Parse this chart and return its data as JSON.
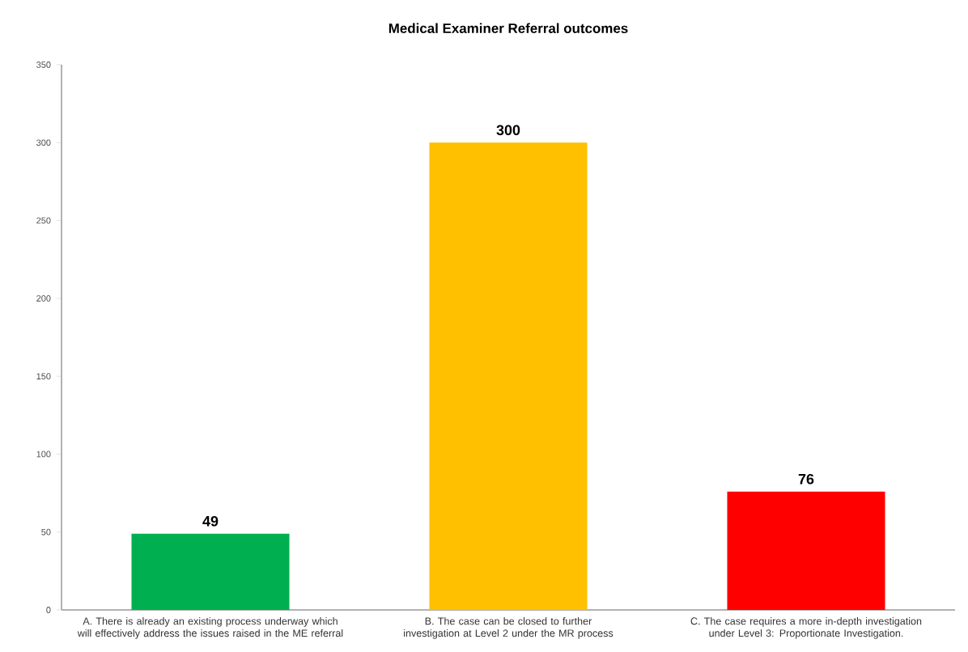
{
  "chart_data": {
    "type": "bar",
    "title": "Medical Examiner Referral outcomes",
    "categories": [
      "A.  There is already an existing process underway which will effectively address the issues raised in the ME referral",
      "B.  The case can be closed to further investigation at Level 2 under the MR process",
      "C.  The case requires a more in-depth investigation under Level 3: Proportionate Investigation."
    ],
    "values": [
      49,
      300,
      76
    ],
    "colors": [
      "#00b050",
      "#ffc000",
      "#ff0000"
    ],
    "ylim": [
      0,
      350
    ],
    "yticks": [
      0,
      50,
      100,
      150,
      200,
      250,
      300,
      350
    ],
    "data_labels": true
  }
}
